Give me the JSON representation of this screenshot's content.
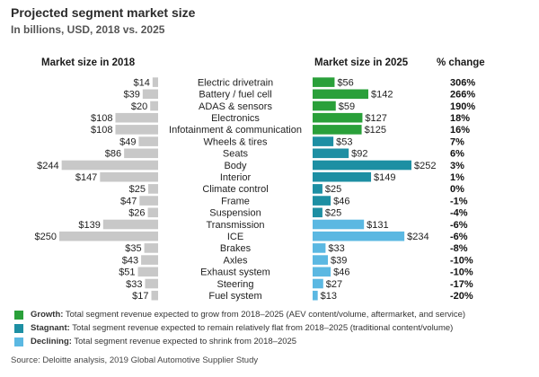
{
  "header": {
    "title": "Projected segment market size",
    "subtitle": "In billions, USD, 2018 vs. 2025",
    "col_2018": "Market size in 2018",
    "col_2025": "Market size in 2025",
    "col_change": "% change"
  },
  "legend": {
    "growth_label": "Growth:",
    "growth_text": "Total segment revenue expected to grow from 2018–2025 (AEV content/volume, aftermarket, and service)",
    "stagnant_label": "Stagnant:",
    "stagnant_text": "Total segment revenue expected to remain relatively flat from 2018–2025 (traditional content/volume)",
    "declining_label": "Declining:",
    "declining_text": "Total segment revenue expected to shrink from 2018–2025"
  },
  "source": "Source: Deloitte analysis, 2019 Global Automotive Supplier Study",
  "colors": {
    "bar_2018": "#c8c8c8",
    "growth": "#2aa03a",
    "stagnant": "#1d8fa3",
    "declining": "#5bb8e2"
  },
  "chart_data": {
    "type": "bar",
    "title": "Projected segment market size",
    "subtitle": "In billions, USD, 2018 vs. 2025",
    "units": "billions USD",
    "categories": [
      "Electric drivetrain",
      "Battery / fuel cell",
      "ADAS & sensors",
      "Electronics",
      "Infotainment & communication",
      "Wheels & tires",
      "Seats",
      "Body",
      "Interior",
      "Climate control",
      "Frame",
      "Suspension",
      "Transmission",
      "ICE",
      "Brakes",
      "Axles",
      "Exhaust system",
      "Steering",
      "Fuel system"
    ],
    "series": [
      {
        "name": "Market size in 2018",
        "labels": [
          "$14",
          "$39",
          "$20",
          "$108",
          "$108",
          "$49",
          "$86",
          "$244",
          "$147",
          "$25",
          "$47",
          "$26",
          "$139",
          "$250",
          "$35",
          "$43",
          "$51",
          "$33",
          "$17"
        ],
        "values": [
          14,
          39,
          20,
          108,
          108,
          49,
          86,
          244,
          147,
          25,
          47,
          26,
          139,
          250,
          35,
          43,
          51,
          33,
          17
        ]
      },
      {
        "name": "Market size in 2025",
        "labels": [
          "$56",
          "$142",
          "$59",
          "$127",
          "$125",
          "$53",
          "$92",
          "$252",
          "$149",
          "$25",
          "$46",
          "$25",
          "$131",
          "$234",
          "$33",
          "$39",
          "$46",
          "$27",
          "$13"
        ],
        "values": [
          56,
          142,
          59,
          127,
          125,
          53,
          92,
          252,
          149,
          25,
          46,
          25,
          131,
          234,
          33,
          39,
          46,
          27,
          13
        ]
      }
    ],
    "pct_change": [
      "306%",
      "266%",
      "190%",
      "18%",
      "16%",
      "7%",
      "6%",
      "3%",
      "1%",
      "0%",
      "-1%",
      "-4%",
      "-6%",
      "-6%",
      "-8%",
      "-10%",
      "-10%",
      "-17%",
      "-20%"
    ],
    "groups": [
      "growth",
      "growth",
      "growth",
      "growth",
      "growth",
      "stagnant",
      "stagnant",
      "stagnant",
      "stagnant",
      "stagnant",
      "stagnant",
      "stagnant",
      "declining",
      "declining",
      "declining",
      "declining",
      "declining",
      "declining",
      "declining"
    ],
    "legend": [
      "Growth",
      "Stagnant",
      "Declining"
    ]
  }
}
